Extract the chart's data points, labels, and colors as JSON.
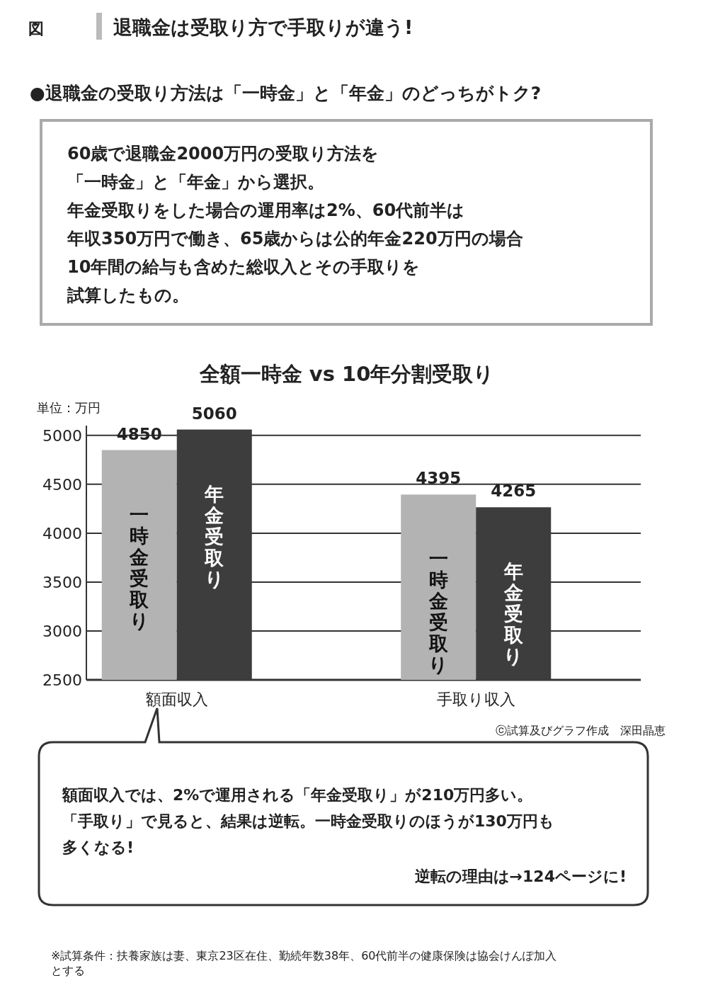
{
  "chart_data": {
    "type": "bar",
    "title": "全額一時金 vs 10年分割受取り",
    "ylabel": "単位：万円",
    "categories": [
      "額面収入",
      "手取り収入"
    ],
    "series": [
      {
        "name": "一時金受取り",
        "color": "#b3b3b3",
        "values": [
          4850,
          4395
        ]
      },
      {
        "name": "年金受取り",
        "color": "#3d3d3d",
        "values": [
          5060,
          4265
        ]
      }
    ],
    "ylim": [
      2500,
      5100
    ],
    "yticks": [
      2500,
      3000,
      3500,
      4000,
      4500,
      5000
    ],
    "grid": "y",
    "legend": false,
    "data_labels": true,
    "annotations": [
      "図",
      "退職金は受取り方で手取りが違う!",
      "●退職金の受取り方法は「一時金」と「年金」のどっちがトク?",
      "60歳で退職金2000万円の受取り方法を「一時金」と「年金」から選択。年金受取りをした場合の運用率は2%、60代前半は年収350万円で働き、65歳からは公的年金220万円の場合10年間の給与も含めた総収入とその手取りを試算したもの。",
      "ⓒ試算及びグラフ作成　深田晶恵",
      "額面収入では、2%で運用される「年金受取り」が210万円多い。「手取り」で見ると、結果は逆転。一時金受取りのほうが130万円も多くなる!",
      "逆転の理由は→124ページに!",
      "※試算条件：扶養家族は妻、東京23区在住、勤続年数38年、60代前半の健康保険は協会けんぽ加入とする"
    ]
  }
}
